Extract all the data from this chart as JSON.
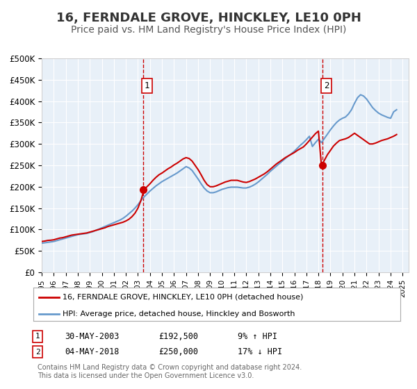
{
  "title": "16, FERNDALE GROVE, HINCKLEY, LE10 0PH",
  "subtitle": "Price paid vs. HM Land Registry's House Price Index (HPI)",
  "title_fontsize": 13,
  "subtitle_fontsize": 10,
  "background_color": "#ffffff",
  "plot_bg_color": "#e8f0f8",
  "grid_color": "#ffffff",
  "ylim": [
    0,
    500000
  ],
  "yticks": [
    0,
    50000,
    100000,
    150000,
    200000,
    250000,
    300000,
    350000,
    400000,
    450000,
    500000
  ],
  "ytick_labels": [
    "£0",
    "£50K",
    "£100K",
    "£150K",
    "£200K",
    "£250K",
    "£300K",
    "£350K",
    "£400K",
    "£450K",
    "£500K"
  ],
  "xmin": 1995.0,
  "xmax": 2025.5,
  "xticks": [
    1995,
    1996,
    1997,
    1998,
    1999,
    2000,
    2001,
    2002,
    2003,
    2004,
    2005,
    2006,
    2007,
    2008,
    2009,
    2010,
    2011,
    2012,
    2013,
    2014,
    2015,
    2016,
    2017,
    2018,
    2019,
    2020,
    2021,
    2022,
    2023,
    2024,
    2025
  ],
  "sale_color": "#cc0000",
  "hpi_color": "#6699cc",
  "sale_linewidth": 1.5,
  "hpi_linewidth": 1.5,
  "marker1_x": 2003.41,
  "marker1_y": 192500,
  "marker2_x": 2018.34,
  "marker2_y": 250000,
  "vline1_x": 2003.41,
  "vline2_x": 2018.34,
  "legend_label_sale": "16, FERNDALE GROVE, HINCKLEY, LE10 0PH (detached house)",
  "legend_label_hpi": "HPI: Average price, detached house, Hinckley and Bosworth",
  "table_rows": [
    {
      "num": "1",
      "date": "30-MAY-2003",
      "price": "£192,500",
      "hpi": "9% ↑ HPI"
    },
    {
      "num": "2",
      "date": "04-MAY-2018",
      "price": "£250,000",
      "hpi": "17% ↓ HPI"
    }
  ],
  "footnote": "Contains HM Land Registry data © Crown copyright and database right 2024.\nThis data is licensed under the Open Government Licence v3.0.",
  "sale_x": [
    1995.0,
    1995.25,
    1995.5,
    1995.75,
    1996.0,
    1996.25,
    1996.5,
    1996.75,
    1997.0,
    1997.25,
    1997.5,
    1997.75,
    1998.0,
    1998.25,
    1998.5,
    1998.75,
    1999.0,
    1999.25,
    1999.5,
    1999.75,
    2000.0,
    2000.25,
    2000.5,
    2000.75,
    2001.0,
    2001.25,
    2001.5,
    2001.75,
    2002.0,
    2002.25,
    2002.5,
    2002.75,
    2003.0,
    2003.25,
    2003.5,
    2003.75,
    2004.0,
    2004.25,
    2004.5,
    2004.75,
    2005.0,
    2005.25,
    2005.5,
    2005.75,
    2006.0,
    2006.25,
    2006.5,
    2006.75,
    2007.0,
    2007.25,
    2007.5,
    2007.75,
    2008.0,
    2008.25,
    2008.5,
    2008.75,
    2009.0,
    2009.25,
    2009.5,
    2009.75,
    2010.0,
    2010.25,
    2010.5,
    2010.75,
    2011.0,
    2011.25,
    2011.5,
    2011.75,
    2012.0,
    2012.25,
    2012.5,
    2012.75,
    2013.0,
    2013.25,
    2013.5,
    2013.75,
    2014.0,
    2014.25,
    2014.5,
    2014.75,
    2015.0,
    2015.25,
    2015.5,
    2015.75,
    2016.0,
    2016.25,
    2016.5,
    2016.75,
    2017.0,
    2017.25,
    2017.5,
    2017.75,
    2018.0,
    2018.25,
    2018.5,
    2018.75,
    2019.0,
    2019.25,
    2019.5,
    2019.75,
    2020.0,
    2020.25,
    2020.5,
    2020.75,
    2021.0,
    2021.25,
    2021.5,
    2021.75,
    2022.0,
    2022.25,
    2022.5,
    2022.75,
    2023.0,
    2023.25,
    2023.5,
    2023.75,
    2024.0,
    2024.25,
    2024.5
  ],
  "sale_y": [
    72000,
    73000,
    74500,
    75000,
    76000,
    78000,
    80000,
    81000,
    83000,
    85000,
    87000,
    88000,
    89000,
    90000,
    91000,
    92000,
    94000,
    96000,
    98000,
    100000,
    102000,
    104000,
    107000,
    109000,
    111000,
    113000,
    115000,
    117000,
    120000,
    124000,
    130000,
    138000,
    150000,
    168000,
    192500,
    200000,
    207000,
    215000,
    222000,
    228000,
    232000,
    237000,
    242000,
    246000,
    251000,
    255000,
    260000,
    265000,
    268000,
    266000,
    260000,
    250000,
    240000,
    228000,
    215000,
    205000,
    200000,
    200000,
    202000,
    205000,
    208000,
    211000,
    213000,
    215000,
    215000,
    215000,
    213000,
    211000,
    210000,
    212000,
    215000,
    218000,
    222000,
    226000,
    230000,
    235000,
    241000,
    247000,
    253000,
    258000,
    263000,
    268000,
    272000,
    276000,
    280000,
    285000,
    289000,
    293000,
    300000,
    308000,
    316000,
    324000,
    330000,
    250000,
    262000,
    275000,
    285000,
    295000,
    302000,
    308000,
    310000,
    312000,
    315000,
    320000,
    325000,
    320000,
    315000,
    310000,
    305000,
    300000,
    300000,
    302000,
    305000,
    308000,
    310000,
    312000,
    315000,
    318000,
    322000
  ],
  "hpi_x": [
    1995.0,
    1995.25,
    1995.5,
    1995.75,
    1996.0,
    1996.25,
    1996.5,
    1996.75,
    1997.0,
    1997.25,
    1997.5,
    1997.75,
    1998.0,
    1998.25,
    1998.5,
    1998.75,
    1999.0,
    1999.25,
    1999.5,
    1999.75,
    2000.0,
    2000.25,
    2000.5,
    2000.75,
    2001.0,
    2001.25,
    2001.5,
    2001.75,
    2002.0,
    2002.25,
    2002.5,
    2002.75,
    2003.0,
    2003.25,
    2003.5,
    2003.75,
    2004.0,
    2004.25,
    2004.5,
    2004.75,
    2005.0,
    2005.25,
    2005.5,
    2005.75,
    2006.0,
    2006.25,
    2006.5,
    2006.75,
    2007.0,
    2007.25,
    2007.5,
    2007.75,
    2008.0,
    2008.25,
    2008.5,
    2008.75,
    2009.0,
    2009.25,
    2009.5,
    2009.75,
    2010.0,
    2010.25,
    2010.5,
    2010.75,
    2011.0,
    2011.25,
    2011.5,
    2011.75,
    2012.0,
    2012.25,
    2012.5,
    2012.75,
    2013.0,
    2013.25,
    2013.5,
    2013.75,
    2014.0,
    2014.25,
    2014.5,
    2014.75,
    2015.0,
    2015.25,
    2015.5,
    2015.75,
    2016.0,
    2016.25,
    2016.5,
    2016.75,
    2017.0,
    2017.25,
    2017.5,
    2017.75,
    2018.0,
    2018.25,
    2018.5,
    2018.75,
    2019.0,
    2019.25,
    2019.5,
    2019.75,
    2020.0,
    2020.25,
    2020.5,
    2020.75,
    2021.0,
    2021.25,
    2021.5,
    2021.75,
    2022.0,
    2022.25,
    2022.5,
    2022.75,
    2023.0,
    2023.25,
    2023.5,
    2023.75,
    2024.0,
    2024.25,
    2024.5
  ],
  "hpi_y": [
    68000,
    69000,
    70000,
    71000,
    72000,
    74000,
    76000,
    78000,
    80000,
    82000,
    84000,
    86000,
    88000,
    89000,
    90000,
    91000,
    93000,
    95000,
    98000,
    101000,
    104000,
    107000,
    110000,
    113000,
    116000,
    119000,
    122000,
    126000,
    131000,
    137000,
    143000,
    150000,
    158000,
    168000,
    176000,
    183000,
    190000,
    196000,
    202000,
    207000,
    212000,
    216000,
    220000,
    224000,
    228000,
    232000,
    237000,
    242000,
    247000,
    244000,
    238000,
    228000,
    218000,
    207000,
    197000,
    190000,
    186000,
    186000,
    188000,
    191000,
    194000,
    196000,
    198000,
    199000,
    199000,
    199000,
    198000,
    197000,
    197000,
    199000,
    202000,
    206000,
    211000,
    217000,
    223000,
    229000,
    236000,
    242000,
    248000,
    254000,
    260000,
    266000,
    272000,
    277000,
    283000,
    290000,
    297000,
    303000,
    310000,
    318000,
    294000,
    303000,
    311000,
    303000,
    313000,
    323000,
    333000,
    342000,
    350000,
    356000,
    360000,
    363000,
    370000,
    380000,
    395000,
    408000,
    415000,
    412000,
    405000,
    395000,
    385000,
    378000,
    372000,
    368000,
    365000,
    362000,
    360000,
    375000,
    380000
  ]
}
